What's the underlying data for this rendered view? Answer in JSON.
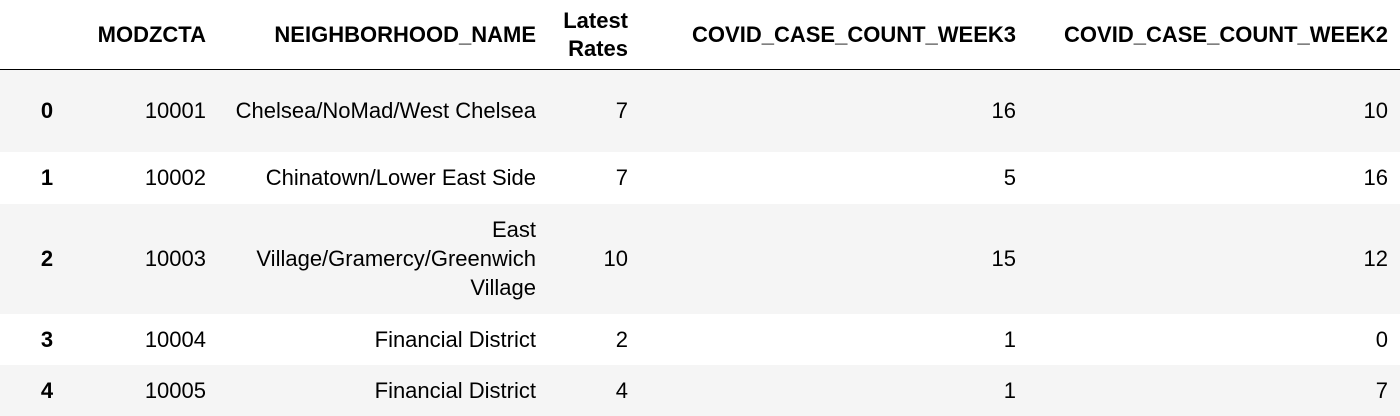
{
  "table": {
    "headers": {
      "index": "",
      "modzcta": "MODZCTA",
      "neighborhood": "NEIGHBORHOOD_NAME",
      "latest_rates_line1": "Latest",
      "latest_rates_line2": "Rates",
      "week3": "COVID_CASE_COUNT_WEEK3",
      "week2": "COVID_CASE_COUNT_WEEK2"
    },
    "rows": [
      {
        "index": "0",
        "modzcta": "10001",
        "neighborhood": "Chelsea/NoMad/West Chelsea",
        "latest_rates": "7",
        "week3": "16",
        "week2": "10"
      },
      {
        "index": "1",
        "modzcta": "10002",
        "neighborhood": "Chinatown/Lower East Side",
        "latest_rates": "7",
        "week3": "5",
        "week2": "16"
      },
      {
        "index": "2",
        "modzcta": "10003",
        "neighborhood": "East Village/Gramercy/Greenwich Village",
        "latest_rates": "10",
        "week3": "15",
        "week2": "12"
      },
      {
        "index": "3",
        "modzcta": "10004",
        "neighborhood": "Financial District",
        "latest_rates": "2",
        "week3": "1",
        "week2": "0"
      },
      {
        "index": "4",
        "modzcta": "10005",
        "neighborhood": "Financial District",
        "latest_rates": "4",
        "week3": "1",
        "week2": "7"
      }
    ]
  }
}
